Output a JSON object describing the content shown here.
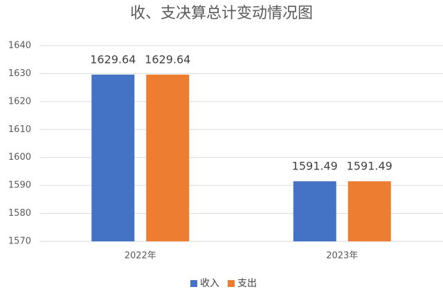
{
  "chart_data": {
    "type": "bar",
    "title": "收、支决算总计变动情况图",
    "categories": [
      "2022年",
      "2023年"
    ],
    "series": [
      {
        "name": "收入",
        "color": "#4472c4",
        "values": [
          1629.64,
          1591.49
        ]
      },
      {
        "name": "支出",
        "color": "#ed7d31",
        "values": [
          1629.64,
          1591.49
        ]
      }
    ],
    "ylim": [
      1570,
      1640
    ],
    "yticks": [
      1570,
      1580,
      1590,
      1600,
      1610,
      1620,
      1630,
      1640
    ],
    "grid": true,
    "legend": "bottom"
  }
}
